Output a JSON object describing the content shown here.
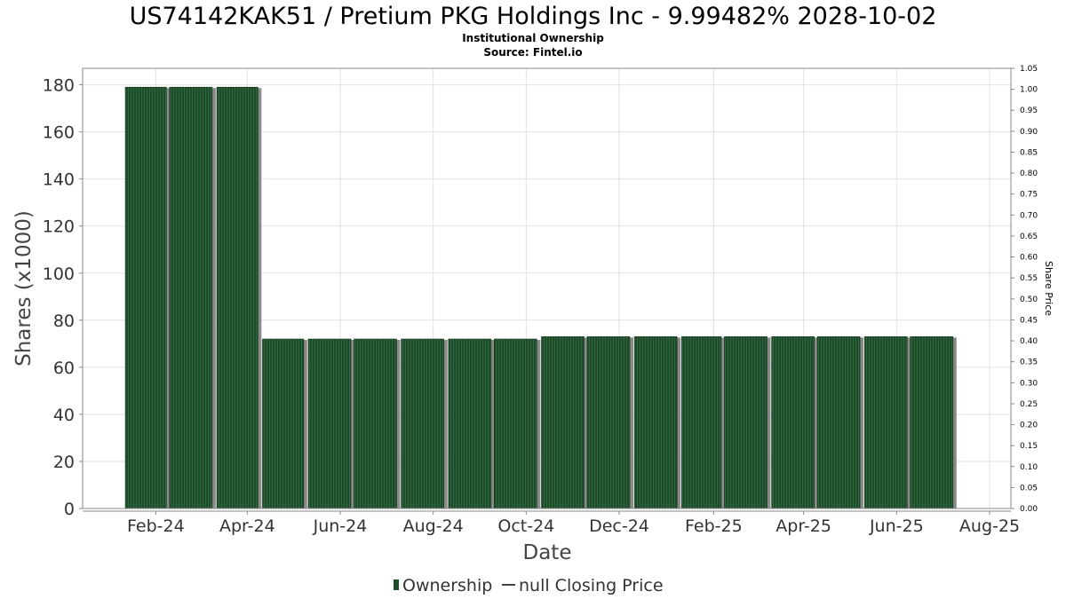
{
  "chart_data": {
    "type": "bar",
    "title": "US74142KAK51 / Pretium PKG Holdings Inc - 9.99482% 2028-10-02",
    "subtitle_lines": [
      "Institutional Ownership",
      "Source: Fintel.io"
    ],
    "xlabel": "Date",
    "ylabel": "Shares (x1000)",
    "y2label": "Share Price",
    "ylim": [
      0,
      187
    ],
    "yticks": [
      0,
      20,
      40,
      60,
      80,
      100,
      120,
      140,
      160,
      180
    ],
    "y2lim": [
      0,
      1.05
    ],
    "y2ticks": [
      "0.00",
      "0.05",
      "0.10",
      "0.15",
      "0.20",
      "0.25",
      "0.30",
      "0.35",
      "0.40",
      "0.45",
      "0.50",
      "0.55",
      "0.60",
      "0.65",
      "0.70",
      "0.75",
      "0.80",
      "0.85",
      "0.90",
      "0.95",
      "1.00",
      "1.05"
    ],
    "xlim": [
      "2023-12-15",
      "2025-08-15"
    ],
    "xticks": [
      {
        "label": "Feb-24",
        "date": "2024-02-01"
      },
      {
        "label": "Apr-24",
        "date": "2024-04-01"
      },
      {
        "label": "Jun-24",
        "date": "2024-06-01"
      },
      {
        "label": "Aug-24",
        "date": "2024-08-01"
      },
      {
        "label": "Oct-24",
        "date": "2024-10-01"
      },
      {
        "label": "Dec-24",
        "date": "2024-12-01"
      },
      {
        "label": "Feb-25",
        "date": "2025-02-01"
      },
      {
        "label": "Apr-25",
        "date": "2025-04-01"
      },
      {
        "label": "Jun-25",
        "date": "2025-06-01"
      },
      {
        "label": "Aug-25",
        "date": "2025-08-01"
      }
    ],
    "series": [
      {
        "name": "Ownership",
        "color": "#1e4d2b",
        "points": [
          {
            "start": "2024-01-12",
            "end": "2024-02-08",
            "value": 179
          },
          {
            "start": "2024-02-10",
            "end": "2024-03-09",
            "value": 179
          },
          {
            "start": "2024-03-12",
            "end": "2024-04-08",
            "value": 179
          },
          {
            "start": "2024-04-11",
            "end": "2024-05-08",
            "value": 72
          },
          {
            "start": "2024-05-11",
            "end": "2024-06-08",
            "value": 72
          },
          {
            "start": "2024-06-10",
            "end": "2024-07-08",
            "value": 72
          },
          {
            "start": "2024-07-11",
            "end": "2024-08-08",
            "value": 72
          },
          {
            "start": "2024-08-11",
            "end": "2024-09-08",
            "value": 72
          },
          {
            "start": "2024-09-10",
            "end": "2024-10-08",
            "value": 72
          },
          {
            "start": "2024-10-11",
            "end": "2024-11-08",
            "value": 73
          },
          {
            "start": "2024-11-10",
            "end": "2024-12-08",
            "value": 73
          },
          {
            "start": "2024-12-11",
            "end": "2025-01-08",
            "value": 73
          },
          {
            "start": "2025-01-11",
            "end": "2025-02-06",
            "value": 73
          },
          {
            "start": "2025-02-08",
            "end": "2025-03-08",
            "value": 73
          },
          {
            "start": "2025-03-11",
            "end": "2025-04-08",
            "value": 73
          },
          {
            "start": "2025-04-10",
            "end": "2025-05-08",
            "value": 73
          },
          {
            "start": "2025-05-11",
            "end": "2025-06-08",
            "value": 73
          },
          {
            "start": "2025-06-10",
            "end": "2025-07-08",
            "value": 73
          }
        ]
      }
    ],
    "legend": {
      "placement": "bottom-center",
      "items": [
        {
          "label": "Ownership",
          "type": "bar",
          "color": "#1e4d2b"
        },
        {
          "label": "null Closing Price",
          "type": "line",
          "color": "#444444"
        }
      ]
    },
    "grid": true
  }
}
